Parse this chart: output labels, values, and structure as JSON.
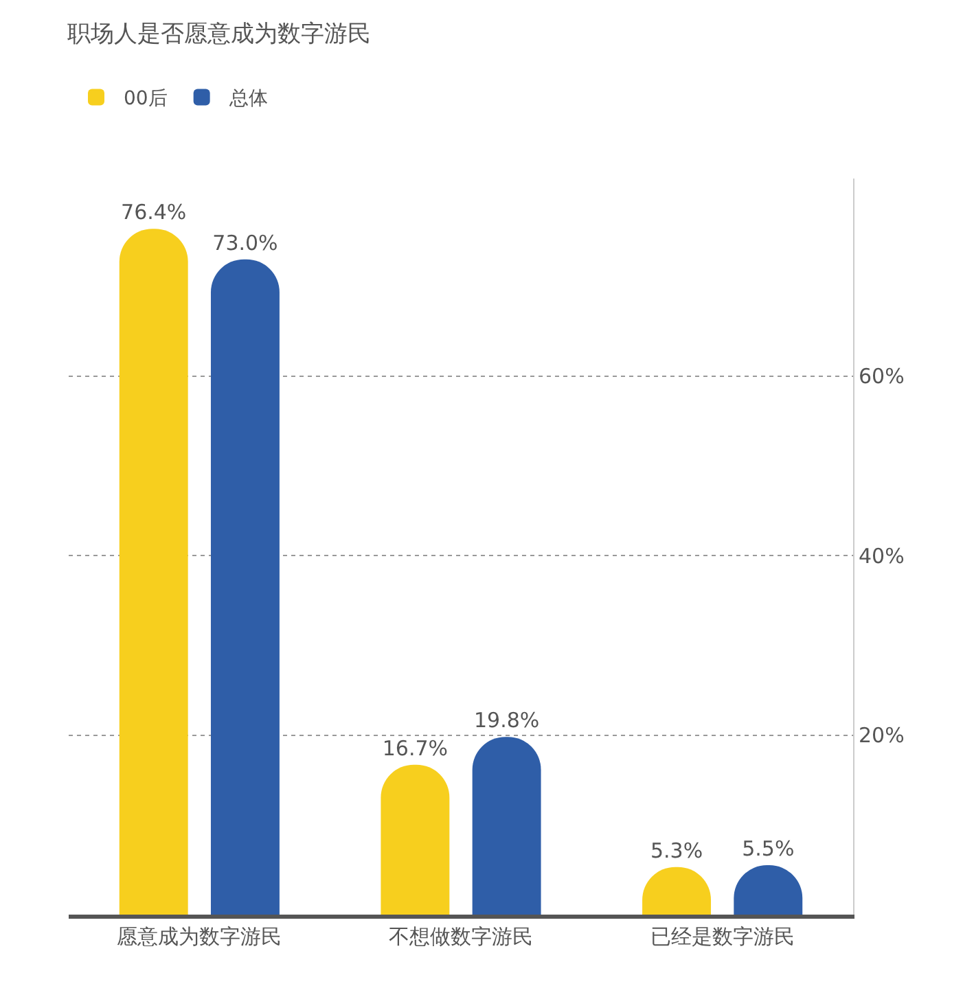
{
  "chart_data": {
    "type": "bar",
    "title": "职场人是否愿意成为数字游民",
    "categories": [
      "愿意成为数字游民",
      "不想做数字游民",
      "已经是数字游民"
    ],
    "series": [
      {
        "name": "00后",
        "color": "#f7cf1e",
        "values": [
          76.4,
          16.7,
          5.3
        ],
        "value_labels": [
          "76.4%",
          "16.7%",
          "5.3%"
        ]
      },
      {
        "name": "总体",
        "color": "#2f5ea8",
        "values": [
          73.0,
          19.8,
          5.5
        ],
        "value_labels": [
          "73.0%",
          "19.8%",
          "5.5%"
        ]
      }
    ],
    "ylim": [
      0,
      82
    ],
    "yticks": [
      {
        "value": 20,
        "label": "20%"
      },
      {
        "value": 40,
        "label": "40%"
      },
      {
        "value": 60,
        "label": "60%"
      }
    ],
    "grid": "y",
    "legend": "top left"
  }
}
